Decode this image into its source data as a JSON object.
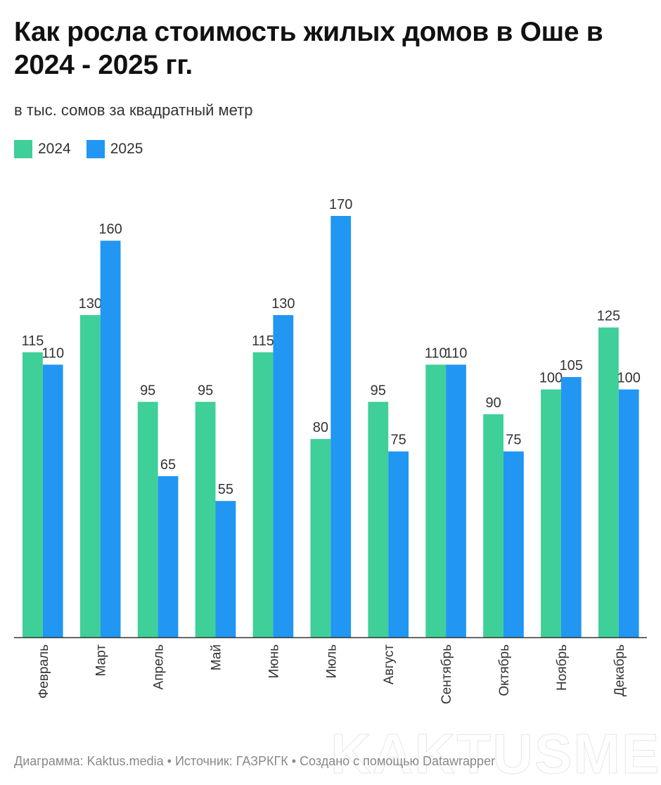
{
  "chart_data": {
    "type": "bar",
    "title": "Как росла стоимость жилых домов в Оше в 2024 - 2025 гг.",
    "subtitle": "в тыс. сомов за квадратный метр",
    "categories": [
      "Февраль",
      "Март",
      "Апрель",
      "Май",
      "Июнь",
      "Июль",
      "Август",
      "Сентябрь",
      "Октябрь",
      "Ноябрь",
      "Декабрь"
    ],
    "series": [
      {
        "name": "2024",
        "color": "#3fcf98",
        "values": [
          115,
          130,
          95,
          95,
          115,
          80,
          95,
          110,
          90,
          100,
          125
        ]
      },
      {
        "name": "2025",
        "color": "#2196f3",
        "values": [
          110,
          160,
          65,
          55,
          130,
          170,
          75,
          110,
          75,
          105,
          100
        ]
      }
    ],
    "ylim": [
      0,
      170
    ],
    "grid": false,
    "legend_position": "top-left",
    "data_labels": true
  },
  "footer": "Диаграмма: Kaktus.media • Источник: ГАЗРКГК • Создано с помощью Datawrapper",
  "watermark": "KAKTUSMEDIA"
}
